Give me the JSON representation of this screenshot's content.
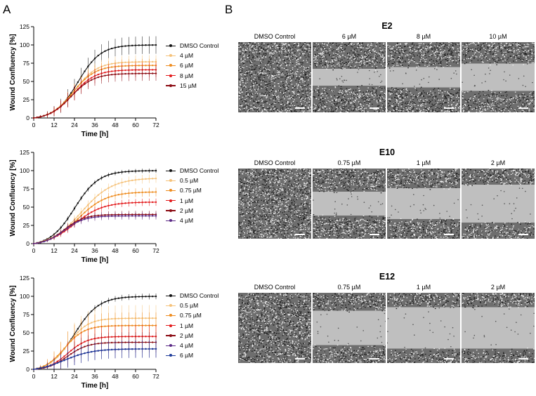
{
  "panels": [
    {
      "letter": "A"
    },
    {
      "letter": "B"
    }
  ],
  "chart_data": [
    {
      "type": "line",
      "xlabel": "Time [h]",
      "ylabel": "Wound Confluency [%]",
      "xlim": [
        0,
        72
      ],
      "ylim": [
        0,
        125
      ],
      "xticks": [
        "0",
        "12",
        "24",
        "36",
        "48",
        "60",
        "72"
      ],
      "yticks": [
        "0",
        "25",
        "50",
        "75",
        "100",
        "125"
      ],
      "series": [
        {
          "name": "DMSO Control",
          "color": "#111111",
          "final": 100,
          "k": 0.15,
          "x0": 26,
          "err": 12
        },
        {
          "name": "4 µM",
          "color": "#f5c27a",
          "final": 77,
          "k": 0.15,
          "x0": 24,
          "err": 9
        },
        {
          "name": "6 µM",
          "color": "#ee8c1f",
          "final": 72,
          "k": 0.15,
          "x0": 23,
          "err": 9
        },
        {
          "name": "8 µM",
          "color": "#e31a1c",
          "final": 66,
          "k": 0.15,
          "x0": 23,
          "err": 10
        },
        {
          "name": "15 µM",
          "color": "#8b0a12",
          "final": 61,
          "k": 0.15,
          "x0": 22,
          "err": 10
        }
      ]
    },
    {
      "type": "line",
      "xlabel": "Time [h]",
      "ylabel": "Wound Confluency [%]",
      "xlim": [
        0,
        72
      ],
      "ylim": [
        0,
        125
      ],
      "xticks": [
        "0",
        "12",
        "24",
        "36",
        "48",
        "60",
        "72"
      ],
      "yticks": [
        "0",
        "25",
        "50",
        "75",
        "100",
        "125"
      ],
      "series": [
        {
          "name": "DMSO Control",
          "color": "#111111",
          "final": 100,
          "k": 0.14,
          "x0": 24,
          "err": 3
        },
        {
          "name": "0.5 µM",
          "color": "#f5c27a",
          "final": 90,
          "k": 0.11,
          "x0": 28,
          "err": 6
        },
        {
          "name": "0.75 µM",
          "color": "#ee8c1f",
          "final": 71,
          "k": 0.12,
          "x0": 26,
          "err": 6
        },
        {
          "name": "1 µM",
          "color": "#e31a1c",
          "final": 57,
          "k": 0.12,
          "x0": 24,
          "err": 5
        },
        {
          "name": "2 µM",
          "color": "#8b0a12",
          "final": 40,
          "k": 0.17,
          "x0": 18,
          "err": 5
        },
        {
          "name": "4 µM",
          "color": "#5b2a86",
          "final": 38,
          "k": 0.17,
          "x0": 18,
          "err": 5
        }
      ]
    },
    {
      "type": "line",
      "xlabel": "Time [h]",
      "ylabel": "Wound Confluency [%]",
      "xlim": [
        0,
        72
      ],
      "ylim": [
        0,
        125
      ],
      "xticks": [
        "0",
        "12",
        "24",
        "36",
        "48",
        "60",
        "72"
      ],
      "yticks": [
        "0",
        "25",
        "50",
        "75",
        "100",
        "125"
      ],
      "series": [
        {
          "name": "DMSO Control",
          "color": "#111111",
          "final": 100,
          "k": 0.14,
          "x0": 24,
          "err": 4
        },
        {
          "name": "0.5 µM",
          "color": "#f5c27a",
          "final": 70,
          "k": 0.17,
          "x0": 20,
          "err": 18
        },
        {
          "name": "0.75 µM",
          "color": "#ee8c1f",
          "final": 60,
          "k": 0.17,
          "x0": 18,
          "err": 18
        },
        {
          "name": "1 µM",
          "color": "#e31a1c",
          "final": 45,
          "k": 0.17,
          "x0": 20,
          "err": 16
        },
        {
          "name": "2 µM",
          "color": "#8b0a12",
          "final": 37,
          "k": 0.17,
          "x0": 20,
          "err": 14
        },
        {
          "name": "4 µM",
          "color": "#5b2a86",
          "final": 28,
          "k": 0.12,
          "x0": 18,
          "err": 12
        },
        {
          "name": "6 µM",
          "color": "#1f3c9a",
          "final": 28,
          "k": 0.12,
          "x0": 18,
          "err": 12
        }
      ]
    }
  ],
  "microscopy": [
    {
      "title": "E2",
      "labels": [
        "DMSO Control",
        "6 µM",
        "8 µM",
        "10 µM"
      ],
      "gap": [
        0,
        0.3,
        0.35,
        0.45
      ]
    },
    {
      "title": "E10",
      "labels": [
        "DMSO Control",
        "0.75 µM",
        "1 µM",
        "2 µM"
      ],
      "gap": [
        0,
        0.4,
        0.5,
        0.6
      ]
    },
    {
      "title": "E12",
      "labels": [
        "DMSO Control",
        "0.75 µM",
        "1 µM",
        "2 µM"
      ],
      "gap": [
        0,
        0.55,
        0.65,
        0.65
      ]
    }
  ]
}
